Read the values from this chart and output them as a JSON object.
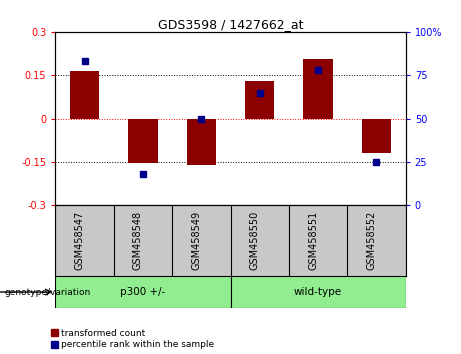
{
  "title": "GDS3598 / 1427662_at",
  "samples": [
    "GSM458547",
    "GSM458548",
    "GSM458549",
    "GSM458550",
    "GSM458551",
    "GSM458552"
  ],
  "bar_values": [
    0.165,
    -0.155,
    -0.16,
    0.13,
    0.205,
    -0.12
  ],
  "percentile_values": [
    83,
    18,
    50,
    65,
    78,
    25
  ],
  "bar_color": "#8B0000",
  "percentile_color": "#00008B",
  "ylim_left": [
    -0.3,
    0.3
  ],
  "ylim_right": [
    0,
    100
  ],
  "yticks_left": [
    -0.3,
    -0.15,
    0,
    0.15,
    0.3
  ],
  "yticks_right": [
    0,
    25,
    50,
    75,
    100
  ],
  "hlines": [
    0.15,
    0,
    -0.15
  ],
  "hline_colors": [
    "black",
    "red",
    "black"
  ],
  "hline_styles": [
    "dotted",
    "dotted",
    "dotted"
  ],
  "bar_width": 0.5,
  "legend_red_label": "transformed count",
  "legend_blue_label": "percentile rank within the sample",
  "genotype_label": "genotype/variation",
  "genotype_group1": "p300 +/-",
  "genotype_group2": "wild-type",
  "background_color": "#ffffff",
  "plot_bg_color": "#ffffff",
  "tick_area_bg": "#c8c8c8",
  "group_color": "#90EE90",
  "title_fontsize": 9,
  "axis_fontsize": 7,
  "label_fontsize": 7
}
